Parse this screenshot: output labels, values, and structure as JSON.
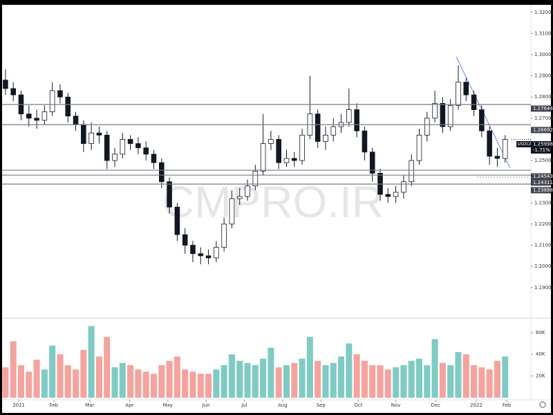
{
  "chart_data": {
    "type": "candlestick",
    "symbol": "USDCAD",
    "watermark": "CMPRO.IR",
    "open": [
      1.288,
      1.284,
      1.281,
      1.272,
      1.27,
      1.269,
      1.273,
      1.283,
      1.28,
      1.271,
      1.267,
      1.258,
      1.263,
      1.262,
      1.25,
      1.253,
      1.26,
      1.258,
      1.256,
      1.253,
      1.249,
      1.24,
      1.228,
      1.215,
      1.21,
      1.206,
      1.205,
      1.204,
      1.209,
      1.22,
      1.232,
      1.233,
      1.238,
      1.245,
      1.258,
      1.26,
      1.249,
      1.251,
      1.25,
      1.262,
      1.272,
      1.259,
      1.262,
      1.266,
      1.268,
      1.274,
      1.264,
      1.254,
      1.244,
      1.234,
      1.233,
      1.235,
      1.24,
      1.25,
      1.262,
      1.27,
      1.277,
      1.266,
      1.276,
      1.287,
      1.281,
      1.274,
      1.264,
      1.252,
      1.251
    ],
    "high": [
      1.293,
      1.287,
      1.283,
      1.276,
      1.274,
      1.276,
      1.287,
      1.286,
      1.282,
      1.273,
      1.269,
      1.268,
      1.266,
      1.264,
      1.256,
      1.263,
      1.262,
      1.261,
      1.259,
      1.255,
      1.251,
      1.242,
      1.23,
      1.218,
      1.212,
      1.209,
      1.208,
      1.212,
      1.223,
      1.236,
      1.237,
      1.241,
      1.248,
      1.272,
      1.264,
      1.262,
      1.255,
      1.254,
      1.265,
      1.29,
      1.274,
      1.266,
      1.27,
      1.272,
      1.284,
      1.277,
      1.266,
      1.256,
      1.246,
      1.237,
      1.238,
      1.243,
      1.253,
      1.265,
      1.273,
      1.283,
      1.28,
      1.279,
      1.295,
      1.289,
      1.283,
      1.276,
      1.266,
      1.256,
      1.262
    ],
    "low": [
      1.281,
      1.278,
      1.269,
      1.266,
      1.265,
      1.267,
      1.271,
      1.277,
      1.268,
      1.264,
      1.254,
      1.255,
      1.258,
      1.246,
      1.247,
      1.251,
      1.255,
      1.253,
      1.25,
      1.246,
      1.237,
      1.225,
      1.212,
      1.206,
      1.202,
      1.201,
      1.201,
      1.202,
      1.207,
      1.218,
      1.229,
      1.231,
      1.236,
      1.243,
      1.255,
      1.246,
      1.247,
      1.247,
      1.248,
      1.26,
      1.256,
      1.255,
      1.259,
      1.263,
      1.266,
      1.261,
      1.25,
      1.24,
      1.231,
      1.23,
      1.23,
      1.232,
      1.238,
      1.248,
      1.259,
      1.268,
      1.263,
      1.264,
      1.274,
      1.278,
      1.271,
      1.261,
      1.248,
      1.247,
      1.249
    ],
    "close": [
      1.284,
      1.281,
      1.272,
      1.27,
      1.269,
      1.273,
      1.283,
      1.28,
      1.271,
      1.267,
      1.258,
      1.263,
      1.262,
      1.25,
      1.253,
      1.26,
      1.258,
      1.256,
      1.253,
      1.249,
      1.24,
      1.228,
      1.215,
      1.21,
      1.206,
      1.205,
      1.204,
      1.209,
      1.22,
      1.232,
      1.233,
      1.238,
      1.245,
      1.258,
      1.26,
      1.249,
      1.251,
      1.25,
      1.262,
      1.272,
      1.259,
      1.262,
      1.266,
      1.268,
      1.274,
      1.264,
      1.254,
      1.244,
      1.234,
      1.233,
      1.235,
      1.24,
      1.25,
      1.262,
      1.27,
      1.277,
      1.266,
      1.276,
      1.287,
      1.281,
      1.274,
      1.264,
      1.252,
      1.251,
      1.25998
    ],
    "volume": [
      28000,
      52000,
      30000,
      24000,
      35000,
      26000,
      48000,
      40000,
      30000,
      26000,
      44000,
      66000,
      38000,
      56000,
      28000,
      32000,
      30000,
      26000,
      24000,
      22000,
      30000,
      34000,
      38000,
      26000,
      24000,
      22000,
      22000,
      26000,
      30000,
      40000,
      34000,
      32000,
      30000,
      36000,
      46000,
      28000,
      30000,
      32000,
      36000,
      56000,
      34000,
      30000,
      32000,
      38000,
      50000,
      40000,
      34000,
      30000,
      30000,
      26000,
      28000,
      30000,
      34000,
      36000,
      30000,
      54000,
      32000,
      30000,
      42000,
      40000,
      30000,
      28000,
      26000,
      34000,
      38000
    ],
    "up_color": "#ffffff",
    "down_color": "#131722",
    "volume_up_color": "#80cbc4",
    "volume_down_color": "#f5a39e",
    "ylim": [
      1.1762,
      1.3232
    ],
    "yticks": [
      {
        "value": 1.32,
        "label": "1.32000"
      },
      {
        "value": 1.31,
        "label": "1.31000"
      },
      {
        "value": 1.3,
        "label": "1.30000"
      },
      {
        "value": 1.29,
        "label": "1.29000"
      },
      {
        "value": 1.28,
        "label": "1.28000"
      },
      {
        "value": 1.27,
        "label": "1.27000"
      },
      {
        "value": 1.25,
        "label": "1.25000"
      },
      {
        "value": 1.23,
        "label": "1.23000"
      },
      {
        "value": 1.22,
        "label": "1.22000"
      },
      {
        "value": 1.21,
        "label": "1.21000"
      },
      {
        "value": 1.2,
        "label": "1.20000"
      },
      {
        "value": 1.19,
        "label": "1.19000"
      }
    ],
    "volume_ylim": [
      0,
      72000
    ],
    "volume_yticks": [
      {
        "value": 60000,
        "label": "60K"
      },
      {
        "value": 40000,
        "label": "40K"
      },
      {
        "value": 20000,
        "label": "20K"
      }
    ],
    "xlim": [
      -0.7,
      67.3
    ],
    "xticks": [
      {
        "value": 1.7,
        "label": "2021"
      },
      {
        "value": 6.2,
        "label": "Feb"
      },
      {
        "value": 10.8,
        "label": "Mar"
      },
      {
        "value": 15.9,
        "label": "Apr"
      },
      {
        "value": 20.8,
        "label": "May"
      },
      {
        "value": 25.7,
        "label": "Jun"
      },
      {
        "value": 30.6,
        "label": "Jul"
      },
      {
        "value": 35.5,
        "label": "Aug"
      },
      {
        "value": 40.4,
        "label": "Sep"
      },
      {
        "value": 45.2,
        "label": "Oct"
      },
      {
        "value": 50.0,
        "label": "Nov"
      },
      {
        "value": 55.1,
        "label": "Dec"
      },
      {
        "value": 60.3,
        "label": "2022"
      },
      {
        "value": 64.2,
        "label": "Feb"
      }
    ],
    "levels": [
      1.27644,
      1.26692,
      1.24543,
      1.24311,
      1.23888
    ],
    "last_price": 1.25998,
    "change_label": "-1.71%"
  }
}
